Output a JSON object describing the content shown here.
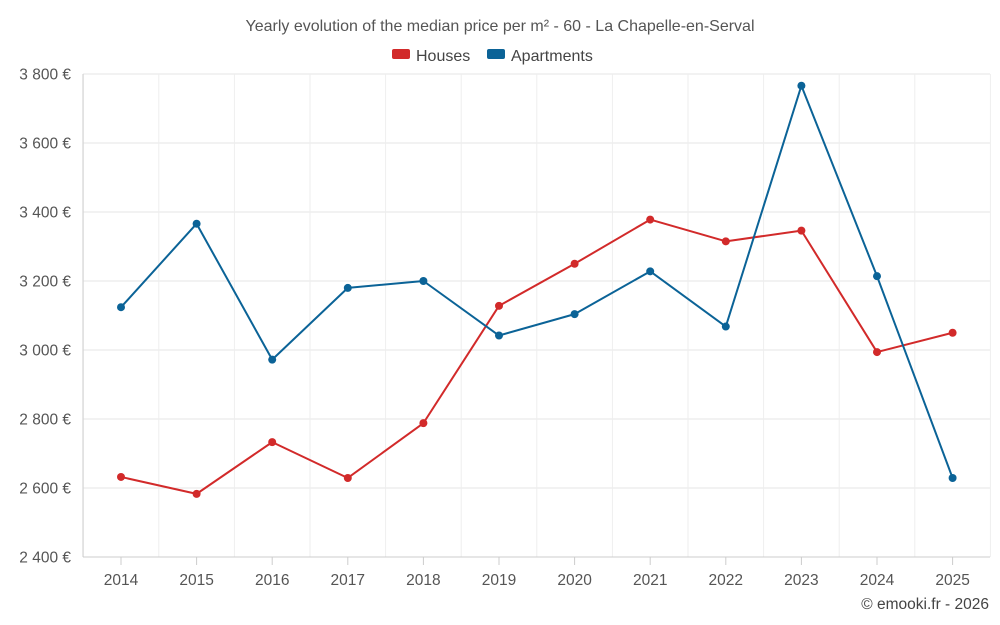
{
  "chart_data": {
    "type": "line",
    "title": "Yearly evolution of the median price per m² - 60 - La Chapelle-en-Serval",
    "categories": [
      "2014",
      "2015",
      "2016",
      "2017",
      "2018",
      "2019",
      "2020",
      "2021",
      "2022",
      "2023",
      "2024",
      "2025"
    ],
    "series": [
      {
        "name": "Houses",
        "color": "#d22a2a",
        "values": [
          2632,
          2583,
          2733,
          2629,
          2788,
          3128,
          3250,
          3378,
          3315,
          3346,
          2994,
          3050
        ]
      },
      {
        "name": "Apartments",
        "color": "#0b6397",
        "values": [
          3124,
          3366,
          2972,
          3180,
          3200,
          3042,
          3104,
          3228,
          3068,
          3766,
          3214,
          2629
        ]
      }
    ],
    "ylim": [
      2400,
      3800
    ],
    "yticks": [
      2400,
      2600,
      2800,
      3000,
      3200,
      3400,
      3600,
      3800
    ],
    "ytick_labels": [
      "2 400 €",
      "2 600 €",
      "2 800 €",
      "3 000 €",
      "3 200 €",
      "3 400 €",
      "3 600 €",
      "3 800 €"
    ],
    "xlabel": "",
    "ylabel": "",
    "grid": true,
    "legend_position": "top-center"
  },
  "credit": "© emooki.fr - 2026"
}
